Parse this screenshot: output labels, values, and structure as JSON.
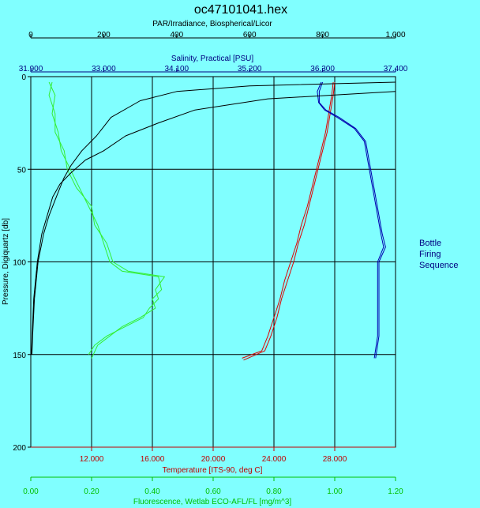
{
  "chart_data": {
    "type": "line",
    "title": "oc47101041.hex",
    "y_axis": {
      "label": "Pressure, Digiquartz [db]",
      "range": [
        0,
        200
      ],
      "ticks": [
        "0",
        "50",
        "100",
        "150",
        "200"
      ],
      "inverted": true,
      "color": "#000000"
    },
    "x_axes": [
      {
        "id": "par",
        "label": "PAR/Irradiance, Biospherical/Licor",
        "position": "top-1",
        "range": [
          0,
          1000
        ],
        "ticks": [
          "0",
          "200",
          "400",
          "600",
          "800",
          "1,000"
        ],
        "color": "#000000"
      },
      {
        "id": "salinity",
        "label": "Salinity, Practical [PSU]",
        "position": "top-2",
        "range": [
          31.9,
          37.4
        ],
        "ticks": [
          "31.900",
          "33.000",
          "34.100",
          "35.200",
          "36.300",
          "37.400"
        ],
        "color": "#000080"
      },
      {
        "id": "temperature",
        "label": "Temperature [ITS-90, deg C]",
        "position": "bottom-1",
        "range": [
          8,
          32
        ],
        "ticks": [
          "12.000",
          "16.000",
          "20.000",
          "24.000",
          "28.000"
        ],
        "tick_values": [
          12,
          16,
          20,
          24,
          28
        ],
        "color": "#c00000"
      },
      {
        "id": "fluorescence",
        "label": "Fluorescence, Wetlab ECO-AFL/FL [mg/m^3]",
        "position": "bottom-2",
        "range": [
          0,
          1.2
        ],
        "ticks": [
          "0.00",
          "0.20",
          "0.40",
          "0.60",
          "0.80",
          "1.00",
          "1.20"
        ],
        "color": "#00c000"
      }
    ],
    "grid": true,
    "legend": "none",
    "series": [
      {
        "axis": "temperature",
        "color": "#e00000",
        "points": [
          [
            28,
            3
          ],
          [
            27.9,
            10
          ],
          [
            27.7,
            20
          ],
          [
            27.5,
            30
          ],
          [
            27.2,
            40
          ],
          [
            26.9,
            50
          ],
          [
            26.6,
            60
          ],
          [
            26.3,
            70
          ],
          [
            26,
            80
          ],
          [
            25.6,
            90
          ],
          [
            25.3,
            100
          ],
          [
            24.9,
            110
          ],
          [
            24.5,
            120
          ],
          [
            24.2,
            130
          ],
          [
            23.8,
            140
          ],
          [
            23.4,
            148
          ],
          [
            22,
            153
          ]
        ]
      },
      {
        "axis": "temperature",
        "color": "#e00000",
        "points": [
          [
            27.9,
            3
          ],
          [
            27.8,
            10
          ],
          [
            27.6,
            20
          ],
          [
            27.4,
            30
          ],
          [
            27.1,
            40
          ],
          [
            26.8,
            50
          ],
          [
            26.5,
            60
          ],
          [
            26.2,
            70
          ],
          [
            25.8,
            80
          ],
          [
            25.5,
            90
          ],
          [
            25.1,
            100
          ],
          [
            24.7,
            110
          ],
          [
            24.4,
            120
          ],
          [
            24,
            130
          ],
          [
            23.6,
            140
          ],
          [
            23.2,
            148
          ],
          [
            21.9,
            152
          ]
        ]
      },
      {
        "axis": "salinity",
        "color": "#0000b0",
        "points": [
          [
            36.3,
            3
          ],
          [
            36.25,
            8
          ],
          [
            36.25,
            14
          ],
          [
            36.35,
            18
          ],
          [
            36.55,
            22
          ],
          [
            36.8,
            28
          ],
          [
            36.95,
            35
          ],
          [
            37.0,
            45
          ],
          [
            37.05,
            55
          ],
          [
            37.1,
            65
          ],
          [
            37.15,
            75
          ],
          [
            37.2,
            85
          ],
          [
            37.25,
            92
          ],
          [
            37.15,
            100
          ],
          [
            37.15,
            110
          ],
          [
            37.15,
            120
          ],
          [
            37.15,
            130
          ],
          [
            37.15,
            140
          ],
          [
            37.1,
            152
          ]
        ]
      },
      {
        "axis": "salinity",
        "color": "#0000b0",
        "points": [
          [
            36.28,
            3
          ],
          [
            36.22,
            8
          ],
          [
            36.24,
            14
          ],
          [
            36.33,
            18
          ],
          [
            36.52,
            22
          ],
          [
            36.78,
            28
          ],
          [
            36.93,
            35
          ],
          [
            36.98,
            45
          ],
          [
            37.03,
            55
          ],
          [
            37.08,
            65
          ],
          [
            37.13,
            75
          ],
          [
            37.18,
            85
          ],
          [
            37.22,
            92
          ],
          [
            37.13,
            100
          ],
          [
            37.13,
            110
          ],
          [
            37.13,
            120
          ],
          [
            37.13,
            130
          ],
          [
            37.13,
            140
          ],
          [
            37.08,
            152
          ]
        ]
      },
      {
        "axis": "fluorescence",
        "color": "#33ee33",
        "points": [
          [
            0.06,
            3
          ],
          [
            0.08,
            10
          ],
          [
            0.07,
            20
          ],
          [
            0.09,
            30
          ],
          [
            0.1,
            40
          ],
          [
            0.13,
            50
          ],
          [
            0.16,
            60
          ],
          [
            0.19,
            70
          ],
          [
            0.22,
            80
          ],
          [
            0.24,
            90
          ],
          [
            0.26,
            100
          ],
          [
            0.3,
            105
          ],
          [
            0.42,
            108
          ],
          [
            0.43,
            115
          ],
          [
            0.4,
            120
          ],
          [
            0.41,
            125
          ],
          [
            0.36,
            130
          ],
          [
            0.3,
            135
          ],
          [
            0.26,
            140
          ],
          [
            0.22,
            145
          ],
          [
            0.2,
            152
          ]
        ]
      },
      {
        "axis": "fluorescence",
        "color": "#33ee33",
        "points": [
          [
            0.07,
            3
          ],
          [
            0.06,
            10
          ],
          [
            0.08,
            20
          ],
          [
            0.08,
            30
          ],
          [
            0.11,
            40
          ],
          [
            0.12,
            50
          ],
          [
            0.15,
            60
          ],
          [
            0.2,
            70
          ],
          [
            0.21,
            80
          ],
          [
            0.25,
            90
          ],
          [
            0.27,
            100
          ],
          [
            0.32,
            105
          ],
          [
            0.44,
            108
          ],
          [
            0.41,
            115
          ],
          [
            0.42,
            120
          ],
          [
            0.39,
            125
          ],
          [
            0.37,
            130
          ],
          [
            0.31,
            135
          ],
          [
            0.25,
            140
          ],
          [
            0.21,
            145
          ],
          [
            0.19,
            150
          ]
        ]
      },
      {
        "axis": "par",
        "color": "#000000",
        "points": [
          [
            1000,
            3
          ],
          [
            600,
            5
          ],
          [
            400,
            8
          ],
          [
            300,
            13
          ],
          [
            220,
            22
          ],
          [
            180,
            32
          ],
          [
            140,
            40
          ],
          [
            110,
            48
          ],
          [
            90,
            55
          ],
          [
            70,
            65
          ],
          [
            50,
            75
          ],
          [
            35,
            85
          ],
          [
            20,
            100
          ],
          [
            10,
            120
          ],
          [
            5,
            140
          ],
          [
            3,
            150
          ]
        ]
      },
      {
        "axis": "par",
        "color": "#000000",
        "points": [
          [
            1000,
            8
          ],
          [
            650,
            12
          ],
          [
            450,
            18
          ],
          [
            350,
            25
          ],
          [
            260,
            32
          ],
          [
            200,
            40
          ],
          [
            150,
            45
          ],
          [
            110,
            52
          ],
          [
            80,
            58
          ],
          [
            60,
            65
          ],
          [
            45,
            75
          ],
          [
            30,
            85
          ],
          [
            18,
            100
          ],
          [
            8,
            120
          ],
          [
            4,
            140
          ],
          [
            2,
            150
          ]
        ]
      }
    ]
  },
  "side_text": {
    "line1": "Bottle",
    "line2": "Firing",
    "line3": "Sequence"
  }
}
